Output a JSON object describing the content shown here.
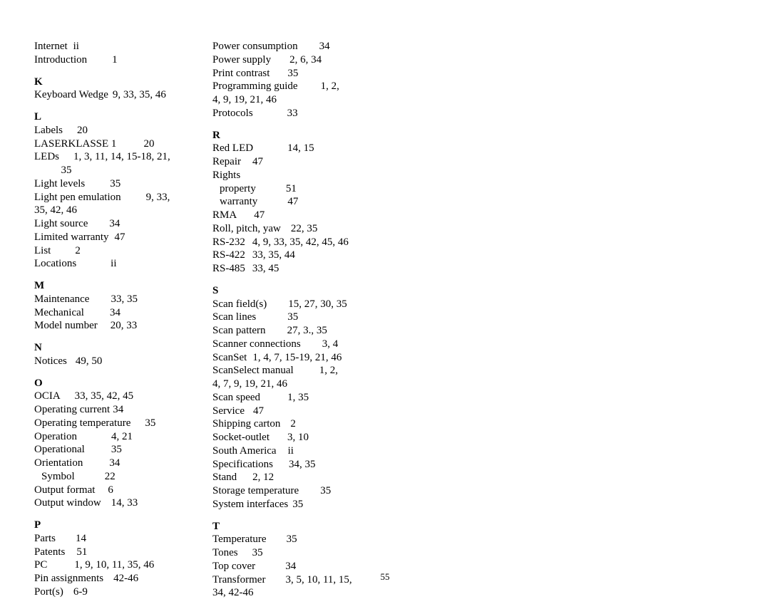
{
  "page_number": "55",
  "columns": [
    {
      "items": [
        {
          "type": "entry",
          "term": "Internet",
          "gap": 8,
          "pages": "ii"
        },
        {
          "type": "entry",
          "term": "Introduction",
          "gap": 35,
          "pages": "1"
        },
        {
          "type": "head",
          "text": "K"
        },
        {
          "type": "entry",
          "term": "Keyboard Wedge",
          "gap": 6,
          "pages": "9, 33, 35, 46"
        },
        {
          "type": "head",
          "text": "L"
        },
        {
          "type": "entry",
          "term": "Labels",
          "gap": 20,
          "pages": "20"
        },
        {
          "type": "entry",
          "term": "LASERKLASSE 1",
          "gap": 38,
          "pages": "20"
        },
        {
          "type": "entry",
          "term": "LEDs",
          "gap": 20,
          "pages": "1, 3, 11, 14, 15-18, 21,"
        },
        {
          "type": "cont",
          "text": "          35"
        },
        {
          "type": "entry",
          "term": "Light levels",
          "gap": 35,
          "pages": "35"
        },
        {
          "type": "entry",
          "term": "Light pen emulation",
          "gap": 35,
          "pages": "9, 33,"
        },
        {
          "type": "cont",
          "text": "35, 42, 46"
        },
        {
          "type": "entry",
          "term": "Light source",
          "gap": 30,
          "pages": "34"
        },
        {
          "type": "entry",
          "term": "Limited warranty",
          "gap": 8,
          "pages": "47"
        },
        {
          "type": "entry",
          "term": "List",
          "gap": 34,
          "pages": "2"
        },
        {
          "type": "entry",
          "term": "Locations",
          "gap": 48,
          "pages": "ii"
        },
        {
          "type": "head",
          "text": "M"
        },
        {
          "type": "entry",
          "term": "Maintenance",
          "gap": 30,
          "pages": "33, 35"
        },
        {
          "type": "entry",
          "term": "Mechanical",
          "gap": 36,
          "pages": "34"
        },
        {
          "type": "entry",
          "term": "Model number",
          "gap": 18,
          "pages": "20, 33"
        },
        {
          "type": "head",
          "text": "N"
        },
        {
          "type": "entry",
          "term": "Notices",
          "gap": 12,
          "pages": "49, 50"
        },
        {
          "type": "head",
          "text": "O"
        },
        {
          "type": "entry",
          "term": "OCIA",
          "gap": 20,
          "pages": "33, 35, 42, 45"
        },
        {
          "type": "entry",
          "term": "Operating current",
          "gap": 4,
          "pages": "34"
        },
        {
          "type": "entry",
          "term": "Operating temperature",
          "gap": 20,
          "pages": "35"
        },
        {
          "type": "entry",
          "term": "Operation",
          "gap": 48,
          "pages": "4, 21"
        },
        {
          "type": "entry",
          "term": "Operational",
          "gap": 37,
          "pages": "35"
        },
        {
          "type": "entry",
          "term": "Orientation",
          "gap": 37,
          "pages": "34"
        },
        {
          "type": "entry",
          "term": "Symbol",
          "gap": 42,
          "pages": "22",
          "indent": true
        },
        {
          "type": "entry",
          "term": "Output format",
          "gap": 18,
          "pages": "6"
        },
        {
          "type": "entry",
          "term": "Output window",
          "gap": 14,
          "pages": "14, 33"
        },
        {
          "type": "head",
          "text": "P"
        },
        {
          "type": "entry",
          "term": "Parts",
          "gap": 28,
          "pages": "14"
        },
        {
          "type": "entry",
          "term": "Patents",
          "gap": 16,
          "pages": "51"
        },
        {
          "type": "entry",
          "term": "PC",
          "gap": 38,
          "pages": "1, 9, 10, 11, 35, 46"
        },
        {
          "type": "entry",
          "term": "Pin assignments",
          "gap": 14,
          "pages": "42-46"
        },
        {
          "type": "entry",
          "term": "Port(s)",
          "gap": 14,
          "pages": "6-9"
        }
      ]
    },
    {
      "items": [
        {
          "type": "entry",
          "term": "Power consumption",
          "gap": 30,
          "pages": "34"
        },
        {
          "type": "entry",
          "term": "Power supply",
          "gap": 26,
          "pages": "2, 6, 34"
        },
        {
          "type": "entry",
          "term": "Print contrast",
          "gap": 25,
          "pages": "35"
        },
        {
          "type": "entry",
          "term": "Programming guide",
          "gap": 32,
          "pages": "1, 2,"
        },
        {
          "type": "cont",
          "text": "4, 9, 19, 21, 46"
        },
        {
          "type": "entry",
          "term": "Protocols",
          "gap": 48,
          "pages": "33"
        },
        {
          "type": "head",
          "text": "R"
        },
        {
          "type": "entry",
          "term": "Red LED",
          "gap": 48,
          "pages": "14, 15"
        },
        {
          "type": "entry",
          "term": "Repair",
          "gap": 16,
          "pages": "47"
        },
        {
          "type": "entry",
          "term": "Rights",
          "gap": 0,
          "pages": ""
        },
        {
          "type": "entry",
          "term": "property",
          "gap": 42,
          "pages": "51",
          "indent": true
        },
        {
          "type": "entry",
          "term": "warranty",
          "gap": 42,
          "pages": "47",
          "indent": true
        },
        {
          "type": "entry",
          "term": "RMA",
          "gap": 24,
          "pages": "47"
        },
        {
          "type": "entry",
          "term": "Roll, pitch, yaw",
          "gap": 14,
          "pages": "22, 35"
        },
        {
          "type": "entry",
          "term": "RS-232",
          "gap": 10,
          "pages": "4, 9, 33, 35, 42, 45, 46"
        },
        {
          "type": "entry",
          "term": "RS-422",
          "gap": 10,
          "pages": "33, 35, 44"
        },
        {
          "type": "entry",
          "term": "RS-485",
          "gap": 10,
          "pages": "33, 45"
        },
        {
          "type": "head",
          "text": "S"
        },
        {
          "type": "entry",
          "term": "Scan field(s)",
          "gap": 30,
          "pages": "15, 27, 30, 35"
        },
        {
          "type": "entry",
          "term": "Scan lines",
          "gap": 44,
          "pages": "35"
        },
        {
          "type": "entry",
          "term": "Scan pattern",
          "gap": 30,
          "pages": "27, 3., 35"
        },
        {
          "type": "entry",
          "term": "Scanner connections",
          "gap": 30,
          "pages": "3, 4"
        },
        {
          "type": "entry",
          "term": "ScanSet",
          "gap": 8,
          "pages": "1, 4, 7, 15-19, 21, 46"
        },
        {
          "type": "entry",
          "term": "ScanSelect manual",
          "gap": 36,
          "pages": "1, 2,"
        },
        {
          "type": "cont",
          "text": "4, 7, 9, 19, 21, 46"
        },
        {
          "type": "entry",
          "term": "Scan speed",
          "gap": 38,
          "pages": "1, 35"
        },
        {
          "type": "entry",
          "term": "Service",
          "gap": 12,
          "pages": "47"
        },
        {
          "type": "entry",
          "term": "Shipping carton",
          "gap": 14,
          "pages": "2"
        },
        {
          "type": "entry",
          "term": "Socket-outlet",
          "gap": 25,
          "pages": "3, 10"
        },
        {
          "type": "entry",
          "term": "South America",
          "gap": 16,
          "pages": "ii"
        },
        {
          "type": "entry",
          "term": "Specifications",
          "gap": 22,
          "pages": "34, 35"
        },
        {
          "type": "entry",
          "term": "Stand",
          "gap": 22,
          "pages": "2, 12"
        },
        {
          "type": "entry",
          "term": "Storage temperature",
          "gap": 30,
          "pages": "35"
        },
        {
          "type": "entry",
          "term": "System interfaces",
          "gap": 6,
          "pages": "35"
        },
        {
          "type": "head",
          "text": "T"
        },
        {
          "type": "entry",
          "term": "Temperature",
          "gap": 28,
          "pages": "35"
        },
        {
          "type": "entry",
          "term": "Tones",
          "gap": 20,
          "pages": "35"
        },
        {
          "type": "entry",
          "term": "Top cover",
          "gap": 42,
          "pages": "34"
        },
        {
          "type": "entry",
          "term": "Transformer",
          "gap": 28,
          "pages": "3, 5, 10, 11, 15,"
        },
        {
          "type": "cont",
          "text": "34, 42-46"
        }
      ]
    }
  ]
}
